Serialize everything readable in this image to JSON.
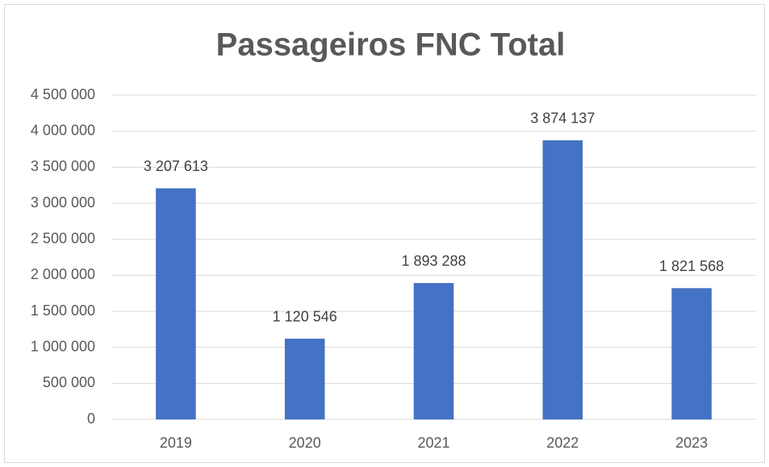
{
  "chart_data": {
    "type": "bar",
    "title": "Passageiros FNC Total",
    "categories": [
      "2019",
      "2020",
      "2021",
      "2022",
      "2023"
    ],
    "values": [
      3207613,
      1120546,
      1893288,
      3874137,
      1821568
    ],
    "value_labels": [
      "3 207 613",
      "1 120 546",
      "1 893 288",
      "3 874 137",
      "1 821 568"
    ],
    "color": "#4472c4",
    "ylim": [
      0,
      4500000
    ],
    "yticks": [
      0,
      {
        "value": 500000,
        "label": "500 000"
      },
      {
        "value": 1000000,
        "label": "1 000 000"
      },
      {
        "value": 1500000,
        "label": "1 500 000"
      },
      {
        "value": 2000000,
        "label": "2 000 000"
      },
      {
        "value": 2500000,
        "label": "2 500 000"
      },
      {
        "value": 3000000,
        "label": "3 000 000"
      },
      {
        "value": 3500000,
        "label": "3 500 000"
      },
      {
        "value": 4000000,
        "label": "4 000 000"
      },
      {
        "value": 4500000,
        "label": "4 500 000"
      }
    ],
    "grid": true
  }
}
